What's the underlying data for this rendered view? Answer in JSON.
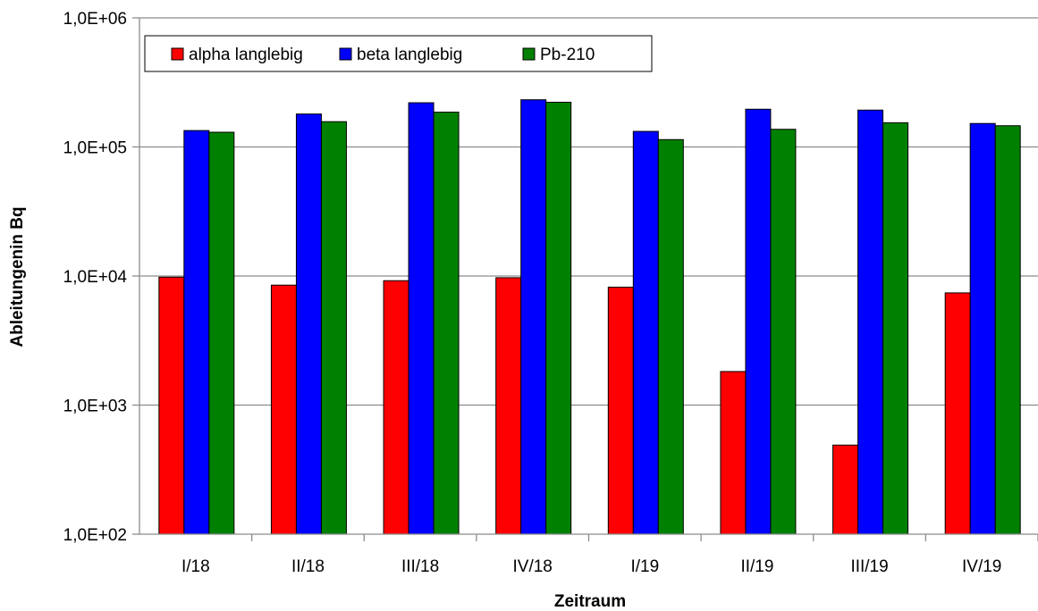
{
  "chart_data": {
    "type": "bar",
    "categories": [
      "I/18",
      "II/18",
      "III/18",
      "IV/18",
      "I/19",
      "II/19",
      "III/19",
      "IV/19"
    ],
    "series": [
      {
        "name": "alpha langlebig",
        "color": "#ff0000",
        "values": [
          9800,
          8500,
          9200,
          9700,
          8200,
          1820,
          490,
          7400
        ]
      },
      {
        "name": "beta langlebig",
        "color": "#0000ff",
        "values": [
          134000,
          180000,
          220000,
          232000,
          132000,
          196000,
          193000,
          152000
        ]
      },
      {
        "name": "Pb-210",
        "color": "#008000",
        "values": [
          130000,
          157000,
          186000,
          222000,
          114000,
          137000,
          154000,
          146000
        ]
      }
    ],
    "xlabel": "Zeitraum",
    "ylabel": "Ableitungenin Bq",
    "yscale": "log",
    "ylim": [
      100,
      1000000
    ],
    "yticks": [
      100,
      1000,
      10000,
      100000,
      1000000
    ],
    "ytick_labels": [
      "1,0E+02",
      "1,0E+03",
      "1,0E+04",
      "1,0E+05",
      "1,0E+06"
    ],
    "grid": true,
    "legend_position": "top-left"
  }
}
